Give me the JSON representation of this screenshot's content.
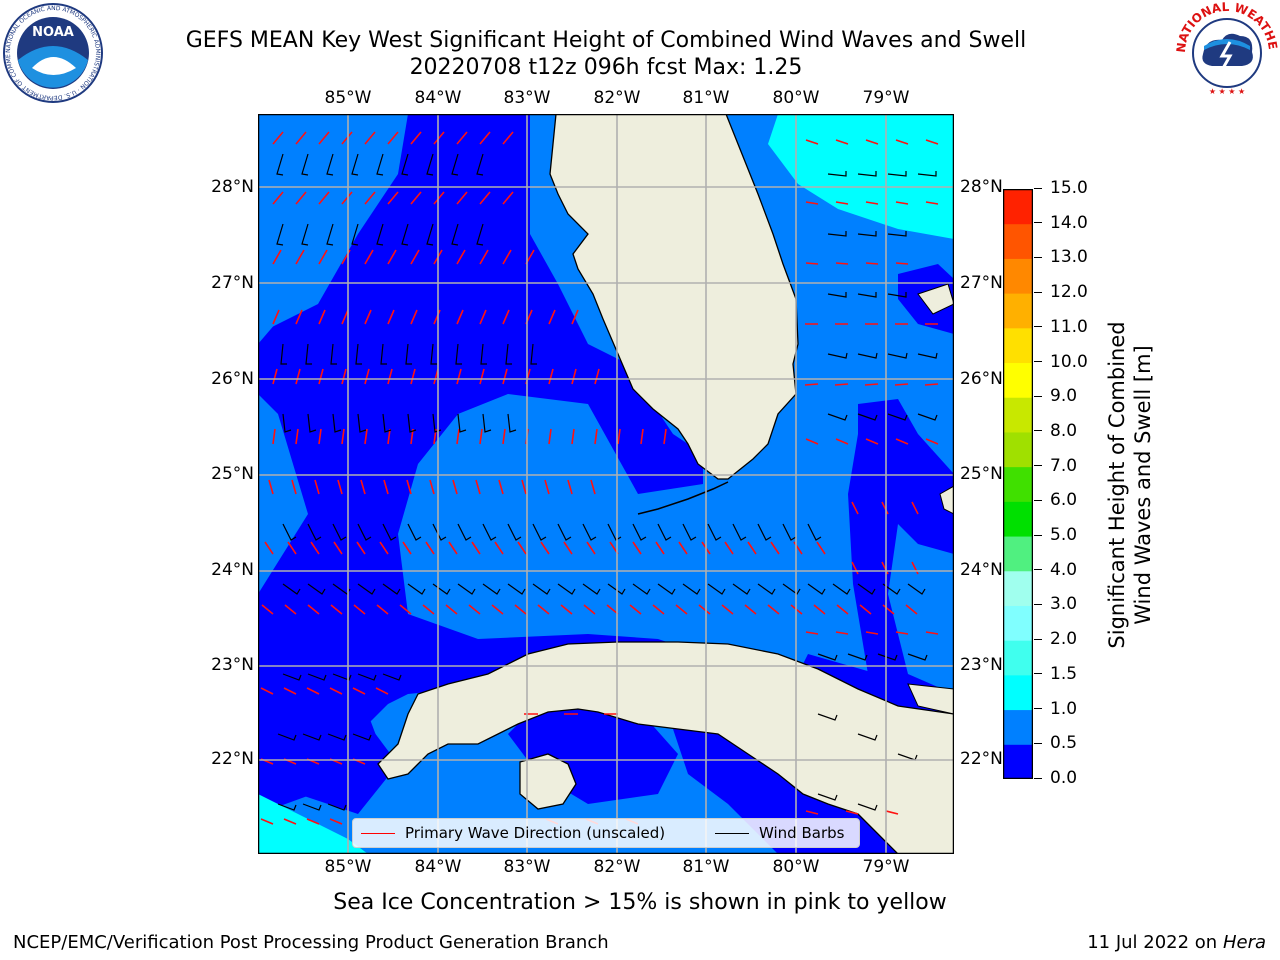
{
  "header": {
    "title_line1": "GEFS MEAN Key West Significant Height of Combined Wind Waves and Swell",
    "title_line2": "20220708 t12z 096h fcst   Max: 1.25"
  },
  "logos": {
    "left": {
      "name": "NOAA",
      "ring_text": "NATIONAL OCEANIC AND ATMOSPHERIC ADMINISTRATION · U.S. DEPARTMENT OF COMMERCE ·"
    },
    "right": {
      "ring_text": "NATIONAL WEATHER SERVICE"
    }
  },
  "axes": {
    "lon_labels": [
      "85°W",
      "84°W",
      "83°W",
      "82°W",
      "81°W",
      "80°W",
      "79°W"
    ],
    "lat_labels": [
      "28°N",
      "27°N",
      "26°N",
      "25°N",
      "24°N",
      "23°N",
      "22°N"
    ]
  },
  "map": {
    "lon_range": [
      -86.0,
      -78.25
    ],
    "lat_range": [
      21.05,
      28.75
    ],
    "land_color": "#eeeedd",
    "grid_color": "#b0b0b0"
  },
  "legend": {
    "wave_label": "Primary Wave Direction (unscaled)",
    "wind_label": "Wind Barbs",
    "wave_color": "#ff0000",
    "wind_color": "#000000"
  },
  "colorbar": {
    "label_line1": "Significant Height of Combined",
    "label_line2": "Wind Waves and Swell [m]",
    "levels": [
      "0.0",
      "0.5",
      "1.0",
      "1.5",
      "2.0",
      "3.0",
      "4.0",
      "5.0",
      "6.0",
      "7.0",
      "8.0",
      "9.0",
      "10.0",
      "11.0",
      "12.0",
      "13.0",
      "14.0",
      "15.0"
    ],
    "colors": [
      "#0000ff",
      "#0080ff",
      "#00ffff",
      "#40ffee",
      "#80ffff",
      "#a0ffee",
      "#50f080",
      "#00e000",
      "#40e000",
      "#a0e000",
      "#c8e800",
      "#ffff00",
      "#ffe000",
      "#ffb000",
      "#ff8800",
      "#ff5500",
      "#ff2200"
    ]
  },
  "footer": {
    "note": "Sea Ice Concentration > 15% is shown in pink to yellow",
    "org": "NCEP/EMC/Verification Post Processing Product Generation Branch",
    "date": "11 Jul 2022 on ",
    "machine": "Hera"
  }
}
